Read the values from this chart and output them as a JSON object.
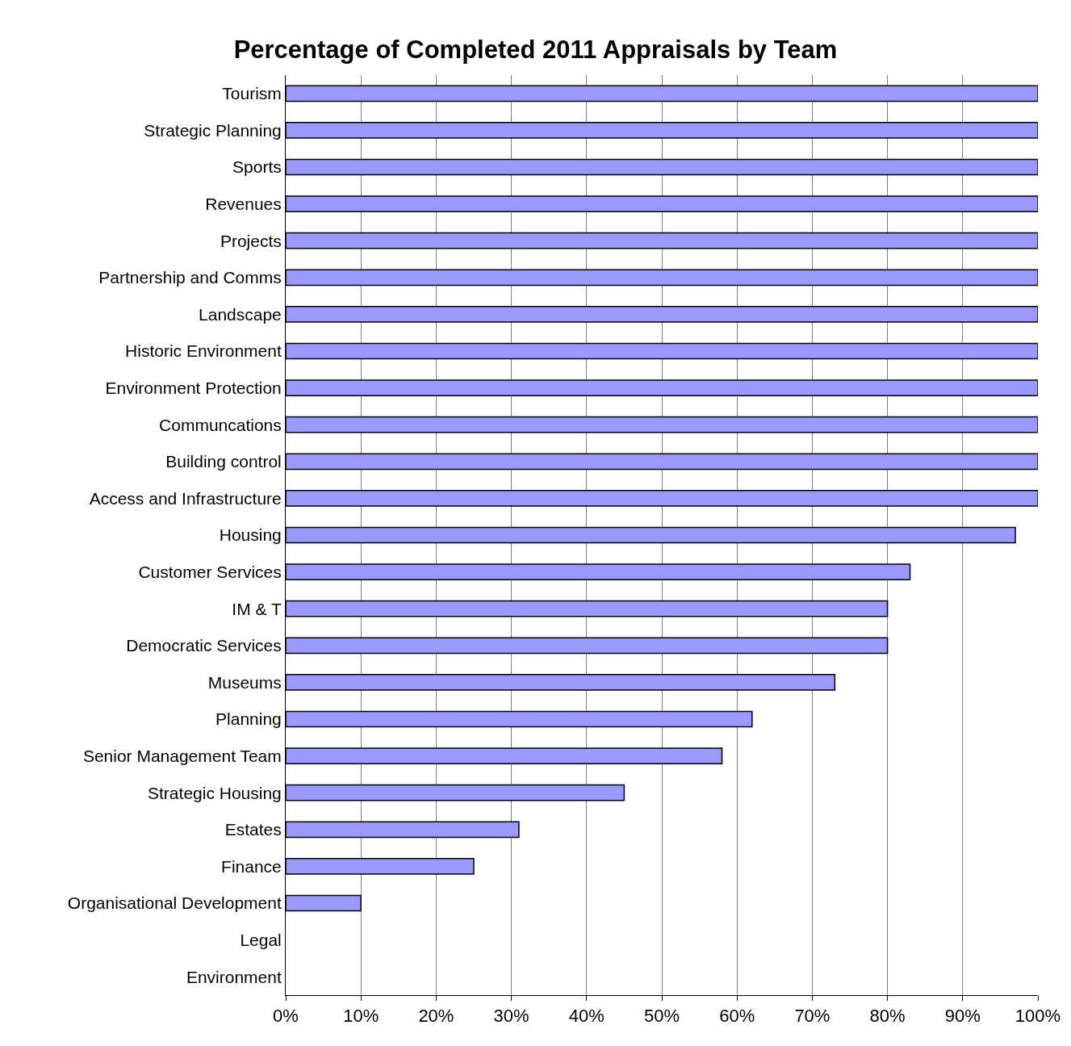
{
  "chart_data": {
    "type": "bar",
    "orientation": "horizontal",
    "title": "Percentage of Completed 2011 Appraisals by Team",
    "categories": [
      "Tourism",
      "Strategic Planning",
      "Sports",
      "Revenues",
      "Projects",
      "Partnership and Comms",
      "Landscape",
      "Historic Environment",
      "Environment Protection",
      "Communcations",
      "Building control",
      "Access and Infrastructure",
      "Housing",
      "Customer Services",
      "IM & T",
      "Democratic Services",
      "Museums",
      "Planning",
      "Senior Management Team",
      "Strategic Housing",
      "Estates",
      "Finance",
      "Organisational Development",
      "Legal",
      "Environment"
    ],
    "values": [
      100,
      100,
      100,
      100,
      100,
      100,
      100,
      100,
      100,
      100,
      100,
      100,
      97,
      83,
      80,
      80,
      73,
      62,
      58,
      45,
      31,
      25,
      10,
      0,
      0
    ],
    "color": "#9999ff",
    "xlim": [
      0,
      100
    ],
    "xticks": [
      {
        "value": 0,
        "label": "0%"
      },
      {
        "value": 10,
        "label": "10%"
      },
      {
        "value": 20,
        "label": "20%"
      },
      {
        "value": 30,
        "label": "30%"
      },
      {
        "value": 40,
        "label": "40%"
      },
      {
        "value": 50,
        "label": "50%"
      },
      {
        "value": 60,
        "label": "60%"
      },
      {
        "value": 70,
        "label": "70%"
      },
      {
        "value": 80,
        "label": "80%"
      },
      {
        "value": 90,
        "label": "90%"
      },
      {
        "value": 100,
        "label": "100%"
      }
    ],
    "grid": "x",
    "legend": false
  }
}
